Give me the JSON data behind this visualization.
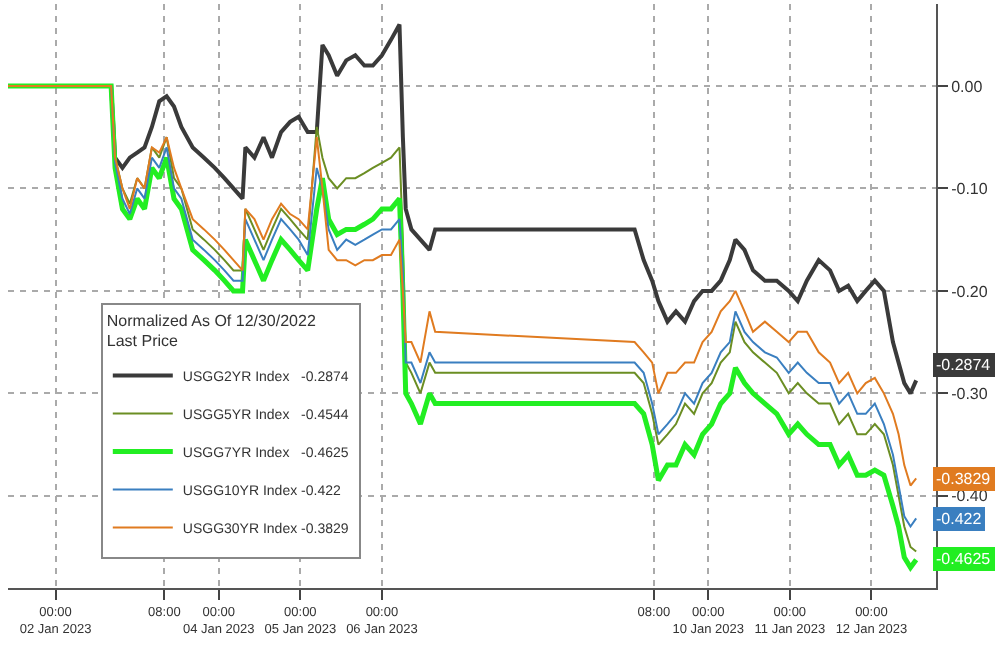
{
  "chart_data": {
    "type": "line",
    "legend_title": "Normalized As Of 12/30/2022\nLast Price",
    "legend": "bottom left",
    "grid": true,
    "line_style": "solid",
    "marker": "none",
    "x": [
      "2023-01-01T10:00",
      "2023-01-02T16:20",
      "2023-01-02T17:30",
      "2023-01-02T19:40",
      "2023-01-02T21:50",
      "2023-01-03T00:00",
      "2023-01-03T02:10",
      "2023-01-03T04:20",
      "2023-01-03T06:30",
      "2023-01-03T08:40",
      "2023-01-03T10:50",
      "2023-01-03T13:00",
      "2023-01-03T16:20",
      "2023-01-03T19:40",
      "2023-01-03T22:50",
      "2023-01-04T01:40",
      "2023-01-04T04:20",
      "2023-01-04T07:00",
      "2023-01-04T07:50",
      "2023-01-04T10:30",
      "2023-01-04T13:10",
      "2023-01-04T15:40",
      "2023-01-04T18:20",
      "2023-01-04T21:00",
      "2023-01-04T23:30",
      "2023-01-05T02:10",
      "2023-01-05T04:50",
      "2023-01-05T06:30",
      "2023-01-05T08:20",
      "2023-01-05T10:50",
      "2023-01-05T13:30",
      "2023-01-05T16:10",
      "2023-01-05T18:50",
      "2023-01-05T21:20",
      "2023-01-06T00:00",
      "2023-01-06T02:40",
      "2023-01-06T05:10",
      "2023-01-06T06:10",
      "2023-01-06T07:00",
      "2023-01-06T08:40",
      "2023-01-06T11:20",
      "2023-01-06T14:00",
      "2023-01-06T15:40",
      "2023-01-09T02:20",
      "2023-01-09T05:00",
      "2023-01-09T07:30",
      "2023-01-09T09:20",
      "2023-01-09T12:00",
      "2023-01-09T14:30",
      "2023-01-09T17:10",
      "2023-01-09T19:50",
      "2023-01-09T22:20",
      "2023-01-10T01:00",
      "2023-01-10T03:40",
      "2023-01-10T06:20",
      "2023-01-10T08:00",
      "2023-01-10T10:40",
      "2023-01-10T13:10",
      "2023-01-10T16:40",
      "2023-01-10T20:10",
      "2023-01-10T23:40",
      "2023-01-11T02:20",
      "2023-01-11T05:00",
      "2023-01-11T08:30",
      "2023-01-11T11:50",
      "2023-01-11T14:30",
      "2023-01-11T17:10",
      "2023-01-11T19:50",
      "2023-01-11T22:20",
      "2023-01-12T01:00",
      "2023-01-12T03:40",
      "2023-01-12T06:20",
      "2023-01-12T08:00",
      "2023-01-12T09:40",
      "2023-01-12T11:30",
      "2023-01-12T13:10"
    ],
    "xlim": [
      "2023-01-01T10:00",
      "2023-01-12T19:00"
    ],
    "xticks": [
      {
        "value": "2023-01-02T00:00",
        "label": "00:00\n02 Jan 2023"
      },
      {
        "value": "2023-01-03T08:00",
        "label": "08:00"
      },
      {
        "value": "2023-01-04T00:00",
        "label": "00:00\n04 Jan 2023"
      },
      {
        "value": "2023-01-05T00:00",
        "label": "00:00\n05 Jan 2023"
      },
      {
        "value": "2023-01-06T00:00",
        "label": "00:00\n06 Jan 2023"
      },
      {
        "value": "2023-01-09T08:00",
        "label": "08:00"
      },
      {
        "value": "2023-01-10T00:00",
        "label": "00:00\n10 Jan 2023"
      },
      {
        "value": "2023-01-11T00:00",
        "label": "00:00\n11 Jan 2023"
      },
      {
        "value": "2023-01-12T00:00",
        "label": "00:00\n12 Jan 2023"
      }
    ],
    "ylim": [
      -0.49,
      0.08
    ],
    "yticks": [
      {
        "value": 0,
        "label": "0.00"
      },
      {
        "value": -0.1,
        "label": "-0.10"
      },
      {
        "value": -0.2,
        "label": "-0.20"
      },
      {
        "value": -0.3,
        "label": "-0.30"
      },
      {
        "value": -0.4,
        "label": "-0.40"
      }
    ],
    "series": [
      {
        "name": "USGG2YR Index   -0.2874",
        "color": "#3a3a3a",
        "values": [
          0,
          0,
          -0.07,
          -0.08,
          -0.07,
          -0.065,
          -0.06,
          -0.04,
          -0.015,
          -0.01,
          -0.02,
          -0.04,
          -0.06,
          -0.07,
          -0.08,
          -0.09,
          -0.1,
          -0.11,
          -0.06,
          -0.07,
          -0.05,
          -0.07,
          -0.045,
          -0.035,
          -0.03,
          -0.045,
          -0.045,
          0.04,
          0.03,
          0.01,
          0.025,
          0.03,
          0.02,
          0.02,
          0.03,
          0.045,
          0.06,
          -0.05,
          -0.12,
          -0.14,
          -0.15,
          -0.16,
          -0.14,
          -0.14,
          -0.17,
          -0.19,
          -0.21,
          -0.23,
          -0.22,
          -0.23,
          -0.21,
          -0.2,
          -0.2,
          -0.19,
          -0.17,
          -0.15,
          -0.16,
          -0.18,
          -0.19,
          -0.19,
          -0.2,
          -0.21,
          -0.19,
          -0.17,
          -0.18,
          -0.2,
          -0.195,
          -0.21,
          -0.2,
          -0.19,
          -0.2,
          -0.25,
          -0.27,
          -0.29,
          -0.3,
          -0.2874
        ],
        "value_labels": [
          null,
          null,
          null,
          null,
          null,
          null,
          null,
          null,
          null,
          null,
          null,
          null,
          null,
          null,
          null,
          null,
          null,
          null,
          null,
          null,
          null,
          null,
          null,
          null,
          null,
          null,
          null,
          null,
          null,
          null,
          null,
          null,
          null,
          null,
          null,
          null,
          null,
          null,
          null,
          null,
          null,
          null,
          null,
          null,
          null,
          null,
          null,
          null,
          null,
          null,
          null,
          null,
          null,
          null,
          null,
          null,
          null,
          null,
          null,
          null,
          null,
          null,
          null,
          null,
          null,
          null,
          null,
          null,
          null,
          null,
          null,
          null,
          null,
          null,
          null,
          "-0.2874"
        ]
      },
      {
        "name": "USGG5YR Index   -0.4544",
        "color": "#6b8e23",
        "values": [
          0,
          0,
          -0.07,
          -0.1,
          -0.115,
          -0.09,
          -0.1,
          -0.06,
          -0.07,
          -0.05,
          -0.09,
          -0.1,
          -0.14,
          -0.15,
          -0.16,
          -0.17,
          -0.18,
          -0.18,
          -0.12,
          -0.14,
          -0.16,
          -0.14,
          -0.12,
          -0.13,
          -0.14,
          -0.15,
          -0.04,
          -0.07,
          -0.09,
          -0.1,
          -0.09,
          -0.09,
          -0.085,
          -0.08,
          -0.075,
          -0.07,
          -0.06,
          -0.15,
          -0.27,
          -0.28,
          -0.3,
          -0.27,
          -0.28,
          -0.28,
          -0.29,
          -0.32,
          -0.35,
          -0.34,
          -0.33,
          -0.31,
          -0.32,
          -0.3,
          -0.29,
          -0.27,
          -0.26,
          -0.23,
          -0.25,
          -0.26,
          -0.27,
          -0.28,
          -0.3,
          -0.29,
          -0.3,
          -0.31,
          -0.31,
          -0.33,
          -0.32,
          -0.34,
          -0.34,
          -0.33,
          -0.34,
          -0.37,
          -0.4,
          -0.43,
          -0.45,
          -0.4544
        ]
      },
      {
        "name": "USGG7YR Index   -0.4625",
        "color": "#22ee22",
        "values": [
          0,
          0,
          -0.08,
          -0.12,
          -0.13,
          -0.11,
          -0.12,
          -0.08,
          -0.09,
          -0.07,
          -0.11,
          -0.12,
          -0.16,
          -0.17,
          -0.18,
          -0.19,
          -0.2,
          -0.2,
          -0.15,
          -0.17,
          -0.19,
          -0.17,
          -0.15,
          -0.16,
          -0.17,
          -0.18,
          -0.12,
          -0.09,
          -0.13,
          -0.145,
          -0.14,
          -0.14,
          -0.135,
          -0.13,
          -0.12,
          -0.12,
          -0.11,
          -0.2,
          -0.3,
          -0.31,
          -0.33,
          -0.3,
          -0.31,
          -0.31,
          -0.32,
          -0.35,
          -0.385,
          -0.37,
          -0.37,
          -0.35,
          -0.36,
          -0.34,
          -0.33,
          -0.31,
          -0.3,
          -0.275,
          -0.29,
          -0.3,
          -0.31,
          -0.32,
          -0.34,
          -0.33,
          -0.34,
          -0.35,
          -0.35,
          -0.37,
          -0.36,
          -0.38,
          -0.38,
          -0.375,
          -0.38,
          -0.41,
          -0.43,
          -0.46,
          -0.47,
          -0.4625
        ],
        "value_labels": [
          null,
          null,
          null,
          null,
          null,
          null,
          null,
          null,
          null,
          null,
          null,
          null,
          null,
          null,
          null,
          null,
          null,
          null,
          null,
          null,
          null,
          null,
          null,
          null,
          null,
          null,
          null,
          null,
          null,
          null,
          null,
          null,
          null,
          null,
          null,
          null,
          null,
          null,
          null,
          null,
          null,
          null,
          null,
          null,
          null,
          null,
          null,
          null,
          null,
          null,
          null,
          null,
          null,
          null,
          null,
          null,
          null,
          null,
          null,
          null,
          null,
          null,
          null,
          null,
          null,
          null,
          null,
          null,
          null,
          null,
          null,
          null,
          null,
          null,
          null,
          "-0.4625"
        ]
      },
      {
        "name": "USGG10YR Index -0.422",
        "color": "#3a7fc0",
        "values": [
          0,
          0,
          -0.075,
          -0.11,
          -0.125,
          -0.1,
          -0.11,
          -0.07,
          -0.08,
          -0.06,
          -0.1,
          -0.11,
          -0.15,
          -0.16,
          -0.17,
          -0.18,
          -0.19,
          -0.19,
          -0.13,
          -0.15,
          -0.17,
          -0.15,
          -0.13,
          -0.14,
          -0.15,
          -0.165,
          -0.08,
          -0.1,
          -0.14,
          -0.16,
          -0.15,
          -0.155,
          -0.15,
          -0.145,
          -0.14,
          -0.14,
          -0.13,
          -0.18,
          -0.27,
          -0.27,
          -0.29,
          -0.26,
          -0.27,
          -0.27,
          -0.28,
          -0.31,
          -0.34,
          -0.33,
          -0.32,
          -0.3,
          -0.31,
          -0.29,
          -0.28,
          -0.26,
          -0.25,
          -0.22,
          -0.24,
          -0.25,
          -0.26,
          -0.265,
          -0.28,
          -0.27,
          -0.28,
          -0.29,
          -0.29,
          -0.31,
          -0.3,
          -0.32,
          -0.32,
          -0.31,
          -0.33,
          -0.36,
          -0.39,
          -0.42,
          -0.43,
          -0.422
        ],
        "value_labels": [
          null,
          null,
          null,
          null,
          null,
          null,
          null,
          null,
          null,
          null,
          null,
          null,
          null,
          null,
          null,
          null,
          null,
          null,
          null,
          null,
          null,
          null,
          null,
          null,
          null,
          null,
          null,
          null,
          null,
          null,
          null,
          null,
          null,
          null,
          null,
          null,
          null,
          null,
          null,
          null,
          null,
          null,
          null,
          null,
          null,
          null,
          null,
          null,
          null,
          null,
          null,
          null,
          null,
          null,
          null,
          null,
          null,
          null,
          null,
          null,
          null,
          null,
          null,
          null,
          null,
          null,
          null,
          null,
          null,
          null,
          null,
          null,
          null,
          null,
          null,
          "-0.422"
        ]
      },
      {
        "name": "USGG30YR Index -0.3829",
        "color": "#e07b20",
        "values": [
          0,
          0,
          -0.07,
          -0.1,
          -0.12,
          -0.09,
          -0.1,
          -0.06,
          -0.065,
          -0.05,
          -0.08,
          -0.1,
          -0.13,
          -0.14,
          -0.15,
          -0.16,
          -0.17,
          -0.18,
          -0.12,
          -0.13,
          -0.15,
          -0.13,
          -0.115,
          -0.125,
          -0.13,
          -0.14,
          -0.05,
          -0.1,
          -0.16,
          -0.17,
          -0.17,
          -0.175,
          -0.17,
          -0.17,
          -0.165,
          -0.165,
          -0.15,
          -0.2,
          -0.25,
          -0.25,
          -0.27,
          -0.22,
          -0.24,
          -0.25,
          -0.26,
          -0.27,
          -0.3,
          -0.28,
          -0.28,
          -0.27,
          -0.27,
          -0.25,
          -0.24,
          -0.22,
          -0.21,
          -0.2,
          -0.22,
          -0.24,
          -0.23,
          -0.24,
          -0.25,
          -0.24,
          -0.24,
          -0.26,
          -0.27,
          -0.29,
          -0.28,
          -0.3,
          -0.29,
          -0.285,
          -0.3,
          -0.32,
          -0.34,
          -0.37,
          -0.39,
          -0.3829
        ],
        "value_labels": [
          null,
          null,
          null,
          null,
          null,
          null,
          null,
          null,
          null,
          null,
          null,
          null,
          null,
          null,
          null,
          null,
          null,
          null,
          null,
          null,
          null,
          null,
          null,
          null,
          null,
          null,
          null,
          null,
          null,
          null,
          null,
          null,
          null,
          null,
          null,
          null,
          null,
          null,
          null,
          null,
          null,
          null,
          null,
          null,
          null,
          null,
          null,
          null,
          null,
          null,
          null,
          null,
          null,
          null,
          null,
          null,
          null,
          null,
          null,
          null,
          null,
          null,
          null,
          null,
          null,
          null,
          null,
          null,
          null,
          null,
          null,
          null,
          null,
          null,
          null,
          "-0.3829"
        ]
      }
    ]
  }
}
